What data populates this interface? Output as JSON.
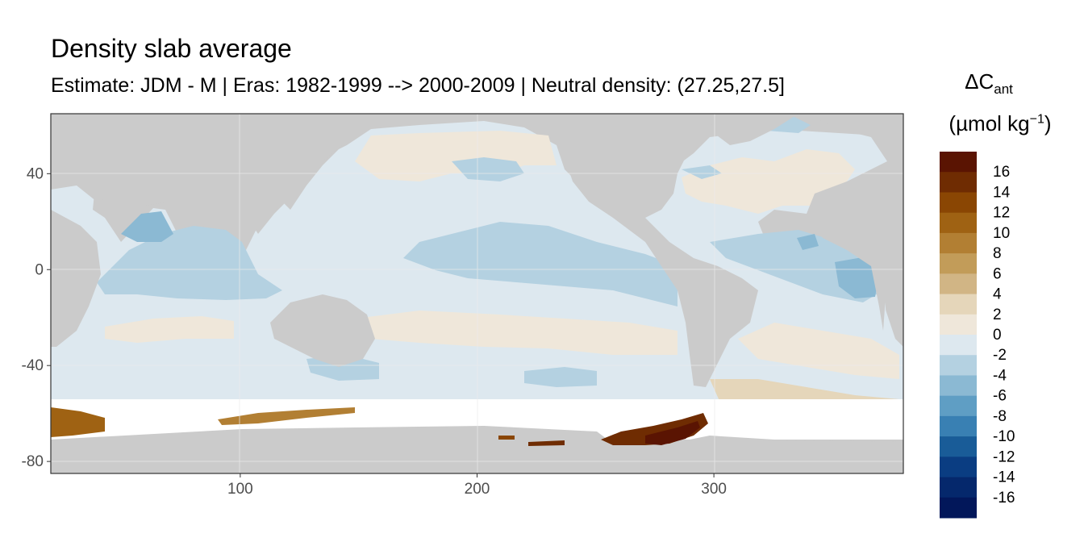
{
  "title": "Density slab average",
  "subtitle": "Estimate: JDM - M | Eras: 1982-1999 --> 2000-2009 | Neutral density: (27.25,27.5]",
  "legend": {
    "title_symbol": "ΔC",
    "title_subscript": "ant",
    "unit_prefix": "(µmol kg",
    "unit_superscript": "−1",
    "unit_suffix": ")",
    "labels": [
      "16",
      "14",
      "12",
      "10",
      "8",
      "6",
      "4",
      "2",
      "0",
      "-2",
      "-4",
      "-6",
      "-8",
      "-10",
      "-12",
      "-14",
      "-16"
    ],
    "colors": [
      "#5a1402",
      "#6f2c02",
      "#8a4603",
      "#9f6213",
      "#b27f33",
      "#c29c59",
      "#d1b585",
      "#e5d6ba",
      "#efe7da",
      "#dde8ef",
      "#b4d1e1",
      "#8bb9d3",
      "#5f9ec4",
      "#3980b3",
      "#195c98",
      "#0a3d82",
      "#05286c",
      "#02175a"
    ]
  },
  "colors": {
    "land": "#cbcbcb",
    "ice_white": "#ffffff",
    "ocean_background": "#dde8ef",
    "grid": "#ebebeb",
    "panel_border": "#333333"
  },
  "chart_data": {
    "type": "heatmap",
    "title": "Density slab average",
    "subtitle": "Estimate: JDM - M | Eras: 1982-1999 --> 2000-2009 | Neutral density: (27.25,27.5]",
    "xlabel": "",
    "ylabel": "",
    "xlim": [
      20,
      380
    ],
    "ylim": [
      -85,
      65
    ],
    "x_ticks": [
      100,
      200,
      300
    ],
    "y_ticks": [
      40,
      0,
      -40,
      -80
    ],
    "legend_placement": "right",
    "grid": true,
    "color_scale": "BrBG reversed, binned by 2 µmol kg−1",
    "zones": [
      {
        "region": "Weddell / Antarctic shelf (~270-295E, ~-65 to -73)",
        "value": 16
      },
      {
        "region": "Ross / Indian sector Antarctic margin (~110-150E, ~-62 to -66)",
        "value": 10
      },
      {
        "region": "Indian Antarctic margin (~20-35E, ~-63 to -70)",
        "value": 10
      },
      {
        "region": "Arabian Sea / NW Indian Ocean (~55-65E, ~10 to 25)",
        "value": -5
      },
      {
        "region": "Equatorial Atlantic east (~335-355E, ~-20 to 10)",
        "value": -5
      },
      {
        "region": "Central equatorial Pacific (~160-260E, ~-20 to 20)",
        "value": -3
      },
      {
        "region": "Subtropical South Pacific / South Atlantic",
        "value": 1
      },
      {
        "region": "North Pacific subpolar band",
        "value": 1
      },
      {
        "region": "Southern Ocean ACC band (~-45 to -60)",
        "value": -1
      }
    ]
  }
}
